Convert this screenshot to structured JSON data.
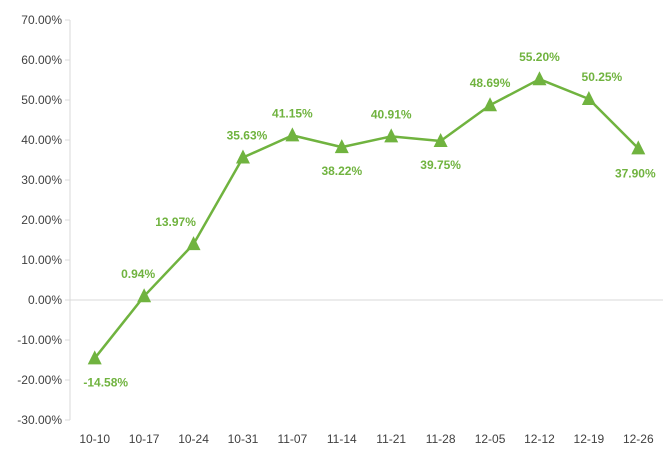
{
  "chart_data": {
    "type": "line",
    "categories": [
      "10-10",
      "10-17",
      "10-24",
      "10-31",
      "11-07",
      "11-14",
      "11-21",
      "11-28",
      "12-05",
      "12-12",
      "12-19",
      "12-26"
    ],
    "series": [
      {
        "values": [
          -14.58,
          0.94,
          13.97,
          35.63,
          41.15,
          38.22,
          40.91,
          39.75,
          48.69,
          55.2,
          50.25,
          37.9
        ],
        "labels": [
          "-14.58%",
          "0.94%",
          "13.97%",
          "35.63%",
          "41.15%",
          "38.22%",
          "40.91%",
          "39.75%",
          "48.69%",
          "55.20%",
          "50.25%",
          "37.90%"
        ],
        "color": "#70b33f",
        "marker": "triangle"
      }
    ],
    "y_ticks": [
      "70.00%",
      "60.00%",
      "50.00%",
      "40.00%",
      "30.00%",
      "20.00%",
      "10.00%",
      "0.00%",
      "-10.00%",
      "-20.00%",
      "-30.00%"
    ],
    "ylim": [
      -30,
      70
    ],
    "ystep": 10,
    "grid": false,
    "title": "",
    "xlabel": "",
    "ylabel": ""
  }
}
